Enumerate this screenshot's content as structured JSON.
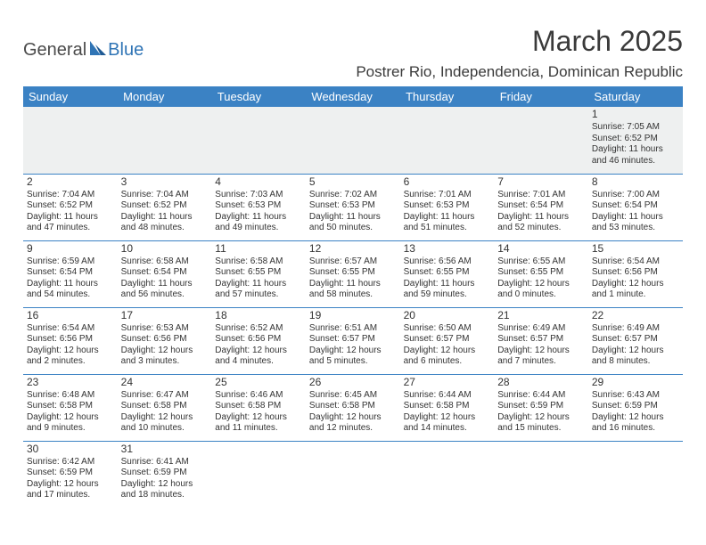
{
  "logo": {
    "general": "Genera",
    "l": "l",
    "blue": "Blue"
  },
  "title": "March 2025",
  "location": "Postrer Rio, Independencia, Dominican Republic",
  "colors": {
    "header_bg": "#3b82c4",
    "header_text": "#ffffff",
    "cell_border": "#3b82c4",
    "text": "#333333",
    "first_row_bg": "#eef0f0",
    "logo_gray": "#4a4a4a",
    "logo_blue": "#2f74b5"
  },
  "day_headers": [
    "Sunday",
    "Monday",
    "Tuesday",
    "Wednesday",
    "Thursday",
    "Friday",
    "Saturday"
  ],
  "weeks": [
    [
      null,
      null,
      null,
      null,
      null,
      null,
      {
        "n": "1",
        "sunrise": "Sunrise: 7:05 AM",
        "sunset": "Sunset: 6:52 PM",
        "day1": "Daylight: 11 hours",
        "day2": "and 46 minutes."
      }
    ],
    [
      {
        "n": "2",
        "sunrise": "Sunrise: 7:04 AM",
        "sunset": "Sunset: 6:52 PM",
        "day1": "Daylight: 11 hours",
        "day2": "and 47 minutes."
      },
      {
        "n": "3",
        "sunrise": "Sunrise: 7:04 AM",
        "sunset": "Sunset: 6:52 PM",
        "day1": "Daylight: 11 hours",
        "day2": "and 48 minutes."
      },
      {
        "n": "4",
        "sunrise": "Sunrise: 7:03 AM",
        "sunset": "Sunset: 6:53 PM",
        "day1": "Daylight: 11 hours",
        "day2": "and 49 minutes."
      },
      {
        "n": "5",
        "sunrise": "Sunrise: 7:02 AM",
        "sunset": "Sunset: 6:53 PM",
        "day1": "Daylight: 11 hours",
        "day2": "and 50 minutes."
      },
      {
        "n": "6",
        "sunrise": "Sunrise: 7:01 AM",
        "sunset": "Sunset: 6:53 PM",
        "day1": "Daylight: 11 hours",
        "day2": "and 51 minutes."
      },
      {
        "n": "7",
        "sunrise": "Sunrise: 7:01 AM",
        "sunset": "Sunset: 6:54 PM",
        "day1": "Daylight: 11 hours",
        "day2": "and 52 minutes."
      },
      {
        "n": "8",
        "sunrise": "Sunrise: 7:00 AM",
        "sunset": "Sunset: 6:54 PM",
        "day1": "Daylight: 11 hours",
        "day2": "and 53 minutes."
      }
    ],
    [
      {
        "n": "9",
        "sunrise": "Sunrise: 6:59 AM",
        "sunset": "Sunset: 6:54 PM",
        "day1": "Daylight: 11 hours",
        "day2": "and 54 minutes."
      },
      {
        "n": "10",
        "sunrise": "Sunrise: 6:58 AM",
        "sunset": "Sunset: 6:54 PM",
        "day1": "Daylight: 11 hours",
        "day2": "and 56 minutes."
      },
      {
        "n": "11",
        "sunrise": "Sunrise: 6:58 AM",
        "sunset": "Sunset: 6:55 PM",
        "day1": "Daylight: 11 hours",
        "day2": "and 57 minutes."
      },
      {
        "n": "12",
        "sunrise": "Sunrise: 6:57 AM",
        "sunset": "Sunset: 6:55 PM",
        "day1": "Daylight: 11 hours",
        "day2": "and 58 minutes."
      },
      {
        "n": "13",
        "sunrise": "Sunrise: 6:56 AM",
        "sunset": "Sunset: 6:55 PM",
        "day1": "Daylight: 11 hours",
        "day2": "and 59 minutes."
      },
      {
        "n": "14",
        "sunrise": "Sunrise: 6:55 AM",
        "sunset": "Sunset: 6:55 PM",
        "day1": "Daylight: 12 hours",
        "day2": "and 0 minutes."
      },
      {
        "n": "15",
        "sunrise": "Sunrise: 6:54 AM",
        "sunset": "Sunset: 6:56 PM",
        "day1": "Daylight: 12 hours",
        "day2": "and 1 minute."
      }
    ],
    [
      {
        "n": "16",
        "sunrise": "Sunrise: 6:54 AM",
        "sunset": "Sunset: 6:56 PM",
        "day1": "Daylight: 12 hours",
        "day2": "and 2 minutes."
      },
      {
        "n": "17",
        "sunrise": "Sunrise: 6:53 AM",
        "sunset": "Sunset: 6:56 PM",
        "day1": "Daylight: 12 hours",
        "day2": "and 3 minutes."
      },
      {
        "n": "18",
        "sunrise": "Sunrise: 6:52 AM",
        "sunset": "Sunset: 6:56 PM",
        "day1": "Daylight: 12 hours",
        "day2": "and 4 minutes."
      },
      {
        "n": "19",
        "sunrise": "Sunrise: 6:51 AM",
        "sunset": "Sunset: 6:57 PM",
        "day1": "Daylight: 12 hours",
        "day2": "and 5 minutes."
      },
      {
        "n": "20",
        "sunrise": "Sunrise: 6:50 AM",
        "sunset": "Sunset: 6:57 PM",
        "day1": "Daylight: 12 hours",
        "day2": "and 6 minutes."
      },
      {
        "n": "21",
        "sunrise": "Sunrise: 6:49 AM",
        "sunset": "Sunset: 6:57 PM",
        "day1": "Daylight: 12 hours",
        "day2": "and 7 minutes."
      },
      {
        "n": "22",
        "sunrise": "Sunrise: 6:49 AM",
        "sunset": "Sunset: 6:57 PM",
        "day1": "Daylight: 12 hours",
        "day2": "and 8 minutes."
      }
    ],
    [
      {
        "n": "23",
        "sunrise": "Sunrise: 6:48 AM",
        "sunset": "Sunset: 6:58 PM",
        "day1": "Daylight: 12 hours",
        "day2": "and 9 minutes."
      },
      {
        "n": "24",
        "sunrise": "Sunrise: 6:47 AM",
        "sunset": "Sunset: 6:58 PM",
        "day1": "Daylight: 12 hours",
        "day2": "and 10 minutes."
      },
      {
        "n": "25",
        "sunrise": "Sunrise: 6:46 AM",
        "sunset": "Sunset: 6:58 PM",
        "day1": "Daylight: 12 hours",
        "day2": "and 11 minutes."
      },
      {
        "n": "26",
        "sunrise": "Sunrise: 6:45 AM",
        "sunset": "Sunset: 6:58 PM",
        "day1": "Daylight: 12 hours",
        "day2": "and 12 minutes."
      },
      {
        "n": "27",
        "sunrise": "Sunrise: 6:44 AM",
        "sunset": "Sunset: 6:58 PM",
        "day1": "Daylight: 12 hours",
        "day2": "and 14 minutes."
      },
      {
        "n": "28",
        "sunrise": "Sunrise: 6:44 AM",
        "sunset": "Sunset: 6:59 PM",
        "day1": "Daylight: 12 hours",
        "day2": "and 15 minutes."
      },
      {
        "n": "29",
        "sunrise": "Sunrise: 6:43 AM",
        "sunset": "Sunset: 6:59 PM",
        "day1": "Daylight: 12 hours",
        "day2": "and 16 minutes."
      }
    ],
    [
      {
        "n": "30",
        "sunrise": "Sunrise: 6:42 AM",
        "sunset": "Sunset: 6:59 PM",
        "day1": "Daylight: 12 hours",
        "day2": "and 17 minutes."
      },
      {
        "n": "31",
        "sunrise": "Sunrise: 6:41 AM",
        "sunset": "Sunset: 6:59 PM",
        "day1": "Daylight: 12 hours",
        "day2": "and 18 minutes."
      },
      null,
      null,
      null,
      null,
      null
    ]
  ]
}
